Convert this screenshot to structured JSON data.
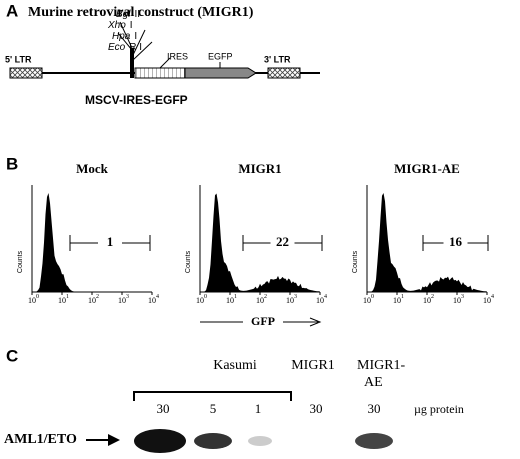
{
  "panel_a": {
    "label": "A",
    "title": "Murine retroviral construct (MIGR1)",
    "ltr5": "5' LTR",
    "ltr3": "3' LTR",
    "sites": [
      {
        "name": "Bgl",
        "suffix": "II"
      },
      {
        "name": "Xho",
        "suffix": "I"
      },
      {
        "name": "Hpa",
        "suffix": "I"
      },
      {
        "name": "Eco",
        "suffix": "R I"
      }
    ],
    "ires": "IRES",
    "egfp": "EGFP",
    "caption": "MSCV-IRES-EGFP"
  },
  "panel_b": {
    "label": "B",
    "y_label": "Counts",
    "tick_base": "10",
    "tick_exponents": [
      "0",
      "1",
      "2",
      "3",
      "4"
    ],
    "x_label": "GFP",
    "plots": [
      {
        "title": "Mock",
        "gate": "1"
      },
      {
        "title": "MIGR1",
        "gate": "22"
      },
      {
        "title": "MIGR1-AE",
        "gate": "16"
      }
    ]
  },
  "panel_c": {
    "label": "C",
    "groups": [
      "Kasumi",
      "MIGR1",
      "MIGR1-",
      "AE"
    ],
    "amounts": [
      "30",
      "5",
      "1",
      "30",
      "30"
    ],
    "unit": "µg protein",
    "protein": "AML1/ETO"
  }
}
